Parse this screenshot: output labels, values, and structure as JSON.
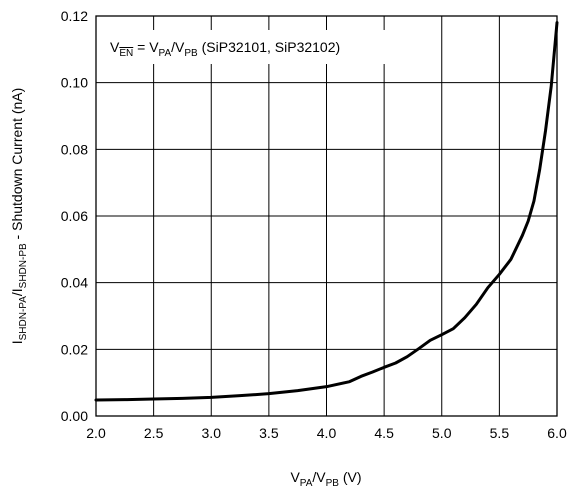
{
  "chart_data": {
    "type": "line",
    "title": "",
    "xlabel": {
      "base1": "V",
      "sub1": "PA",
      "sep": "/V",
      "sub2": "PB",
      "unit": " (V)"
    },
    "ylabel": {
      "base1": "I",
      "sub1": "SHDN-PA",
      "sep": "/I",
      "sub2": "SHDN-PB",
      "rest": " - Shutdown Current (nA)"
    },
    "annotation": {
      "v": "V",
      "en": "EN",
      "eq": " = V",
      "pa": "PA",
      "slash": "/V",
      "pb": "PB",
      "rest": " (SiP32101, SiP32102)"
    },
    "xlim": [
      2.0,
      6.0
    ],
    "ylim": [
      0.0,
      0.12
    ],
    "xticks": [
      "2.0",
      "2.5",
      "3.0",
      "3.5",
      "4.0",
      "4.5",
      "5.0",
      "5.5",
      "6.0"
    ],
    "yticks": [
      "0.00",
      "0.02",
      "0.04",
      "0.06",
      "0.08",
      "0.10",
      "0.12"
    ],
    "grid": true,
    "series": [
      {
        "color": "#000000",
        "x": [
          2.0,
          2.25,
          2.5,
          2.75,
          3.0,
          3.25,
          3.5,
          3.75,
          4.0,
          4.2,
          4.3,
          4.4,
          4.5,
          4.6,
          4.7,
          4.8,
          4.9,
          5.0,
          5.1,
          5.2,
          5.3,
          5.4,
          5.5,
          5.6,
          5.7,
          5.75,
          5.8,
          5.85,
          5.9,
          5.95,
          6.0
        ],
        "y": [
          0.0048,
          0.0049,
          0.0051,
          0.0053,
          0.0056,
          0.0061,
          0.0067,
          0.0076,
          0.0088,
          0.0103,
          0.0119,
          0.0132,
          0.0146,
          0.0159,
          0.0178,
          0.0202,
          0.0227,
          0.0244,
          0.0262,
          0.0295,
          0.0335,
          0.0385,
          0.0425,
          0.047,
          0.0542,
          0.0585,
          0.0645,
          0.074,
          0.0855,
          0.099,
          0.118
        ]
      }
    ]
  }
}
